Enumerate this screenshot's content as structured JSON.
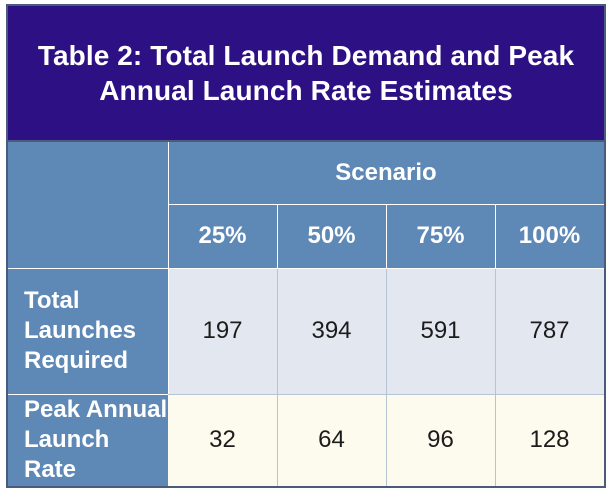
{
  "table": {
    "title_line1": "Table 2: Total Launch Demand and Peak",
    "title_line2": "Annual Launch Rate Estimates",
    "group_header": "Scenario",
    "columns": [
      "25%",
      "50%",
      "75%",
      "100%"
    ],
    "rows": [
      {
        "label": "Total\nLaunches\nRequired",
        "values": [
          "197",
          "394",
          "591",
          "787"
        ]
      },
      {
        "label": "Peak Annual\nLaunch Rate",
        "values": [
          "32",
          "64",
          "96",
          "128"
        ]
      }
    ]
  },
  "colors": {
    "title_background": "#2d1184",
    "header_background": "#5e88b6",
    "row1_background": "#e3e8f0",
    "row2_background": "#fdfbee",
    "header_text": "#ffffff",
    "value_text": "#1c1c1c"
  }
}
